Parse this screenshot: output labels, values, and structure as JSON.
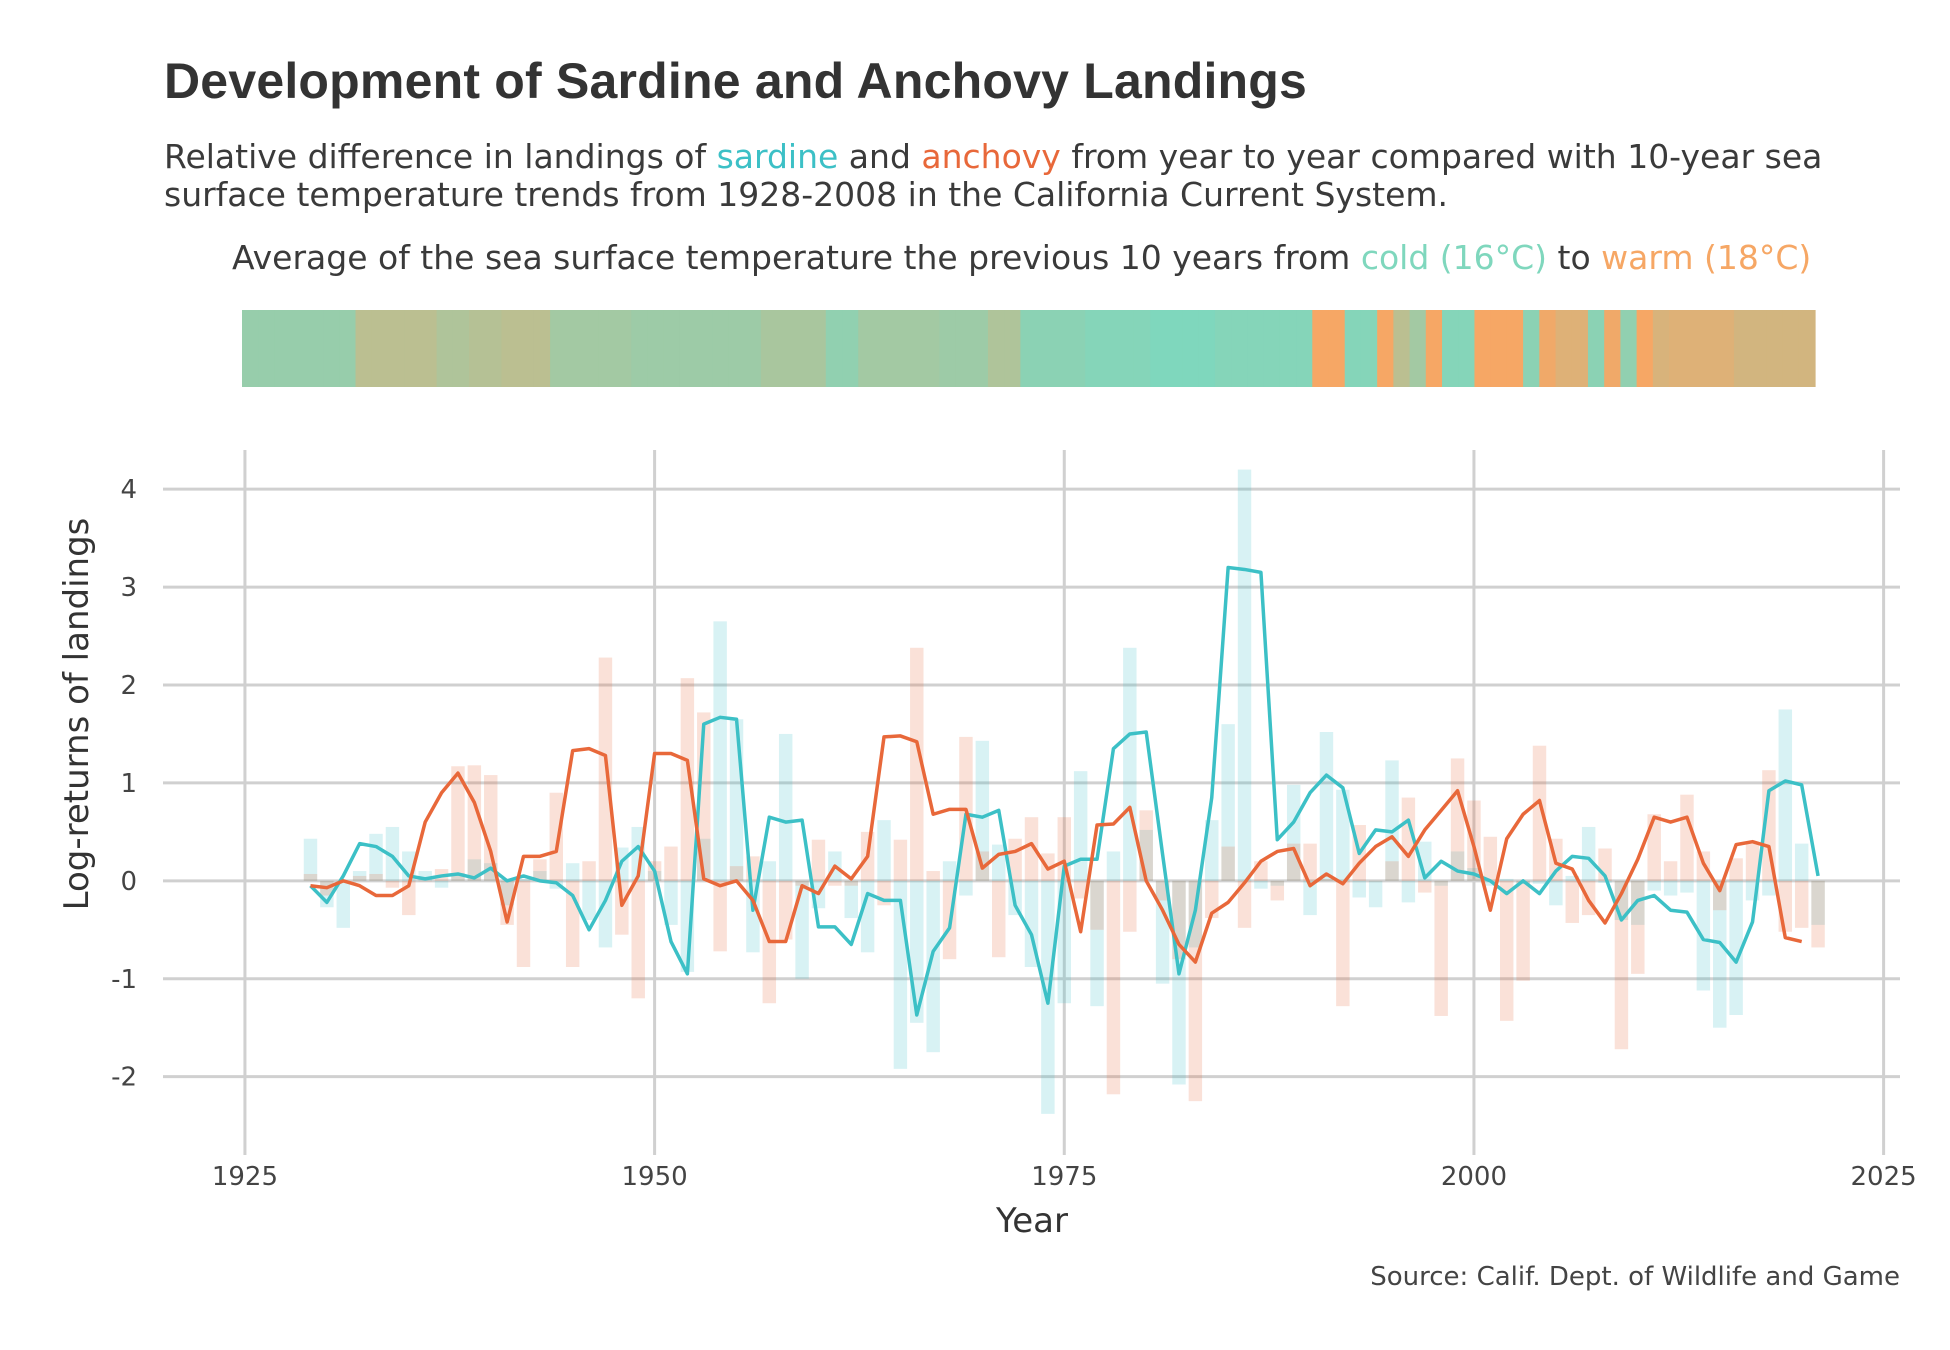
{
  "title": "Development of Sardine and Anchovy Landings",
  "subtitle": {
    "part1": "Relative difference in landings of ",
    "sardine": "sardine",
    "part2": " and ",
    "anchovy": "anchovy",
    "part3": " from year to year compared with 10-year sea surface temperature trends from 1928-2008 in the California Current System."
  },
  "legend": {
    "part1": "Average of the sea surface temperature the previous 10 years from ",
    "cold": "cold (16°C)",
    "part2": " to ",
    "warm": "warm (18°C)"
  },
  "caption": "Source: Calif. Dept. of Wildlife and Game",
  "colors": {
    "sardine": "#3cc0c6",
    "anchovy": "#e8683a",
    "cold": "#7fd7bd",
    "warm": "#f6a765",
    "grid": "#d0d0d0"
  },
  "chart_data": {
    "type": "line",
    "xlabel": "Year",
    "ylabel": "Log-returns of landings",
    "xlim": [
      1920,
      2026
    ],
    "ylim": [
      -2.8,
      4.4
    ],
    "xticks": [
      1925,
      1950,
      1975,
      2000,
      2025
    ],
    "yticks": [
      -2,
      -1,
      0,
      1,
      2,
      3,
      4
    ],
    "grid": true,
    "sst_range": [
      16,
      18
    ],
    "sst_years": [
      1925,
      2021
    ],
    "sst_values": [
      16.4,
      16.4,
      16.4,
      16.4,
      16.4,
      16.4,
      16.4,
      17.0,
      17.0,
      17.0,
      17.0,
      17.0,
      16.8,
      16.8,
      16.9,
      16.9,
      17.0,
      17.0,
      17.0,
      16.6,
      16.6,
      16.6,
      16.6,
      16.6,
      16.5,
      16.5,
      16.5,
      16.5,
      16.5,
      16.5,
      16.5,
      16.5,
      16.7,
      16.7,
      16.7,
      16.7,
      16.3,
      16.3,
      16.6,
      16.6,
      16.6,
      16.6,
      16.6,
      16.5,
      16.5,
      16.5,
      16.8,
      16.8,
      16.2,
      16.2,
      16.2,
      16.2,
      16.1,
      16.1,
      16.1,
      16.1,
      16.0,
      16.0,
      16.0,
      16.0,
      16.1,
      16.1,
      16.1,
      16.1,
      16.1,
      16.1,
      18.0,
      18.0,
      16.1,
      16.1,
      18.0,
      17.0,
      16.6,
      18.0,
      16.1,
      16.1,
      18.0,
      18.0,
      18.0,
      16.2,
      17.9,
      17.6,
      17.6,
      16.2,
      17.9,
      16.3,
      18.0,
      17.5,
      17.6,
      17.6,
      17.6,
      17.6,
      17.4,
      17.4,
      17.4,
      17.4,
      17.4
    ],
    "series": [
      {
        "name": "sardine",
        "years": [
          1929,
          1930,
          1931,
          1932,
          1933,
          1934,
          1935,
          1936,
          1937,
          1938,
          1939,
          1940,
          1941,
          1942,
          1943,
          1944,
          1945,
          1946,
          1947,
          1948,
          1949,
          1950,
          1951,
          1952,
          1953,
          1954,
          1955,
          1956,
          1957,
          1958,
          1959,
          1960,
          1961,
          1962,
          1963,
          1964,
          1965,
          1966,
          1967,
          1968,
          1969,
          1970,
          1971,
          1972,
          1973,
          1974,
          1975,
          1976,
          1977,
          1978,
          1979,
          1980,
          1981,
          1982,
          1983,
          1984,
          1985,
          1986,
          1987,
          1988,
          1989,
          1990,
          1991,
          1992,
          1993,
          1994,
          1995,
          1996,
          1997,
          1998,
          1999,
          2000,
          2001,
          2002,
          2003,
          2004,
          2005,
          2006,
          2007,
          2008,
          2009,
          2010,
          2011,
          2012,
          2013,
          2014,
          2015,
          2016,
          2017,
          2018,
          2019,
          2020,
          2021
        ],
        "bars": [
          0.43,
          -0.27,
          -0.48,
          0.1,
          0.48,
          0.55,
          0.3,
          0.1,
          -0.07,
          0.08,
          0.22,
          0.18,
          -0.25,
          0.02,
          0.1,
          -0.08,
          0.18,
          -0.4,
          -0.68,
          0.34,
          0.55,
          0.1,
          -0.45,
          -0.93,
          0.43,
          2.65,
          1.65,
          -0.73,
          0.2,
          1.5,
          -1.0,
          -0.28,
          0.3,
          -0.38,
          -0.73,
          0.62,
          -1.92,
          -1.45,
          -1.75,
          0.2,
          -0.15,
          1.43,
          0.37,
          -0.35,
          -0.88,
          -2.38,
          -1.25,
          1.12,
          -1.28,
          0.3,
          2.38,
          0.52,
          -1.05,
          -2.08,
          -0.68,
          0.62,
          1.6,
          4.2,
          -0.08,
          -0.05,
          0.98,
          -0.35,
          1.52,
          0.93,
          -0.17,
          -0.27,
          1.23,
          -0.22,
          0.4,
          -0.05,
          0.3,
          0.13,
          -0.05,
          0.02,
          -0.03,
          -0.03,
          -0.25,
          0.05,
          0.55,
          -0.02,
          -0.4,
          -0.45,
          -0.1,
          -0.15,
          -0.12,
          -1.12,
          -1.5,
          -1.37,
          -0.2,
          -0.15,
          1.75,
          0.38,
          -0.45
        ],
        "line": [
          -0.05,
          -0.22,
          0.05,
          0.38,
          0.35,
          0.25,
          0.05,
          0.02,
          0.05,
          0.07,
          0.03,
          0.13,
          0.0,
          0.05,
          0.0,
          -0.02,
          -0.15,
          -0.5,
          -0.2,
          0.2,
          0.35,
          0.1,
          -0.62,
          -0.95,
          1.6,
          1.67,
          1.65,
          -0.3,
          0.65,
          0.6,
          0.62,
          -0.47,
          -0.47,
          -0.65,
          -0.13,
          -0.2,
          -0.2,
          -1.37,
          -0.72,
          -0.48,
          0.68,
          0.65,
          0.72,
          -0.25,
          -0.55,
          -1.25,
          0.15,
          0.22,
          0.22,
          1.35,
          1.5,
          1.52,
          0.27,
          -0.95,
          -0.3,
          0.85,
          3.2,
          3.18,
          3.15,
          0.42,
          0.6,
          0.9,
          1.08,
          0.95,
          0.28,
          0.52,
          0.5,
          0.62,
          0.03,
          0.2,
          0.1,
          0.07,
          0.0,
          -0.13,
          0.0,
          -0.13,
          0.1,
          0.25,
          0.23,
          0.05,
          -0.4,
          -0.2,
          -0.15,
          -0.3,
          -0.32,
          -0.6,
          -0.63,
          -0.83,
          -0.42,
          0.92,
          1.02,
          0.98,
          0.05
        ]
      },
      {
        "name": "anchovy",
        "years": [
          1929,
          1930,
          1931,
          1932,
          1933,
          1934,
          1935,
          1936,
          1937,
          1938,
          1939,
          1940,
          1941,
          1942,
          1943,
          1944,
          1945,
          1946,
          1947,
          1948,
          1949,
          1950,
          1951,
          1952,
          1953,
          1954,
          1955,
          1956,
          1957,
          1958,
          1959,
          1960,
          1961,
          1962,
          1963,
          1964,
          1965,
          1966,
          1967,
          1968,
          1969,
          1970,
          1971,
          1972,
          1973,
          1974,
          1975,
          1976,
          1977,
          1978,
          1979,
          1980,
          1981,
          1982,
          1983,
          1984,
          1985,
          1986,
          1987,
          1988,
          1989,
          1990,
          1991,
          1992,
          1993,
          1994,
          1995,
          1996,
          1997,
          1998,
          1999,
          2000,
          2001,
          2002,
          2003,
          2004,
          2005,
          2006,
          2007,
          2008,
          2009,
          2010,
          2011,
          2012,
          2013,
          2014,
          2015,
          2016,
          2017,
          2018,
          2019,
          2020,
          2021
        ],
        "bars": [
          0.07,
          -0.15,
          -0.02,
          0.05,
          0.07,
          -0.07,
          -0.35,
          0.0,
          0.12,
          1.17,
          1.18,
          1.08,
          -0.45,
          -0.88,
          0.22,
          0.9,
          -0.88,
          0.2,
          2.28,
          -0.55,
          -1.2,
          0.2,
          0.35,
          2.07,
          1.72,
          -0.72,
          0.15,
          0.25,
          -1.25,
          -0.6,
          -0.05,
          0.42,
          -0.05,
          -0.05,
          0.5,
          -0.25,
          0.42,
          2.38,
          0.1,
          -0.8,
          1.47,
          0.3,
          -0.78,
          0.43,
          0.65,
          0.28,
          0.65,
          -0.18,
          -0.5,
          -2.18,
          -0.52,
          0.72,
          -0.2,
          -0.8,
          -2.25,
          -0.38,
          0.35,
          -0.48,
          0.2,
          -0.2,
          0.38,
          0.38,
          0.02,
          -1.28,
          0.57,
          0.0,
          0.2,
          0.85,
          -0.12,
          -1.38,
          1.25,
          0.82,
          0.45,
          -1.43,
          -1.02,
          1.38,
          0.43,
          -0.43,
          -0.35,
          0.33,
          -1.72,
          -0.95,
          0.68,
          0.2,
          0.88,
          0.3,
          -0.3,
          0.23,
          0.38,
          1.13,
          -0.52,
          -0.48,
          -0.68
        ],
        "line": [
          -0.05,
          -0.07,
          0.0,
          -0.05,
          -0.15,
          -0.15,
          -0.05,
          0.6,
          0.9,
          1.1,
          0.8,
          0.3,
          -0.42,
          0.25,
          0.25,
          0.3,
          1.33,
          1.35,
          1.28,
          -0.25,
          0.05,
          1.3,
          1.3,
          1.23,
          0.02,
          -0.05,
          0.0,
          -0.2,
          -0.62,
          -0.62,
          -0.05,
          -0.13,
          0.15,
          0.02,
          0.25,
          1.47,
          1.48,
          1.42,
          0.68,
          0.73,
          0.73,
          0.13,
          0.27,
          0.3,
          0.38,
          0.12,
          0.2,
          -0.52,
          0.57,
          0.58,
          0.75,
          0.0,
          -0.3,
          -0.65,
          -0.83,
          -0.33,
          -0.22,
          -0.02,
          0.2,
          0.3,
          0.33,
          -0.05,
          0.07,
          -0.03,
          0.18,
          0.35,
          0.45,
          0.25,
          0.52,
          0.72,
          0.92,
          0.35,
          -0.3,
          0.43,
          0.68,
          0.82,
          0.18,
          0.12,
          -0.2,
          -0.43,
          -0.13,
          0.22,
          0.65,
          0.6,
          0.65,
          0.18,
          -0.1,
          0.37,
          0.4,
          0.35,
          -0.58,
          -0.62
        ]
      }
    ]
  }
}
